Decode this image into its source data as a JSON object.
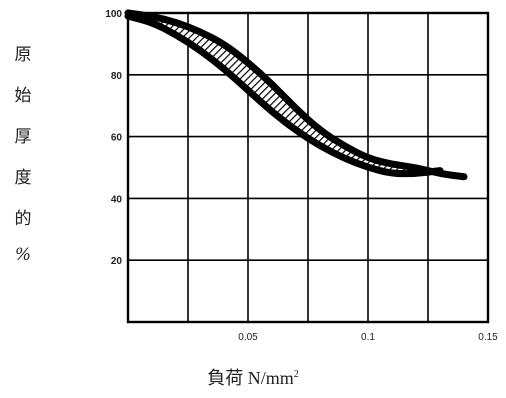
{
  "chart_data": {
    "type": "area",
    "title": "",
    "ylabel_chars": [
      "原",
      "始",
      "厚",
      "度",
      "的",
      "%"
    ],
    "xlabel": {
      "text": "負荷 N/mm",
      "sup": "2"
    },
    "xlim": [
      0.0,
      0.15
    ],
    "ylim": [
      0,
      100
    ],
    "xticks": [
      0.05,
      0.1,
      0.15
    ],
    "xtick_labels": [
      "0.05",
      "0.1",
      "0.15"
    ],
    "yticks": [
      20,
      40,
      60,
      80,
      100
    ],
    "ytick_labels": [
      "20",
      "40",
      "60",
      "80",
      "100"
    ],
    "grid": true,
    "series": [
      {
        "band": "upper",
        "x": [
          0.0,
          0.01,
          0.02,
          0.03,
          0.04,
          0.05,
          0.06,
          0.07,
          0.08,
          0.09,
          0.1,
          0.11,
          0.12,
          0.13,
          0.14
        ],
        "values": [
          100,
          99,
          97,
          94,
          90,
          84,
          77,
          69,
          62,
          57,
          53,
          51,
          50,
          48,
          47
        ]
      },
      {
        "band": "lower",
        "x": [
          0.0,
          0.01,
          0.02,
          0.03,
          0.04,
          0.05,
          0.06,
          0.07,
          0.08,
          0.09,
          0.1,
          0.11,
          0.12,
          0.13
        ],
        "values": [
          99,
          97,
          93,
          88,
          82,
          75,
          68,
          62,
          57,
          53,
          50,
          48,
          48,
          49
        ]
      }
    ],
    "colors": {
      "band": "#000000",
      "grid": "#000000",
      "axis": "#000000",
      "text": "#222222"
    }
  }
}
